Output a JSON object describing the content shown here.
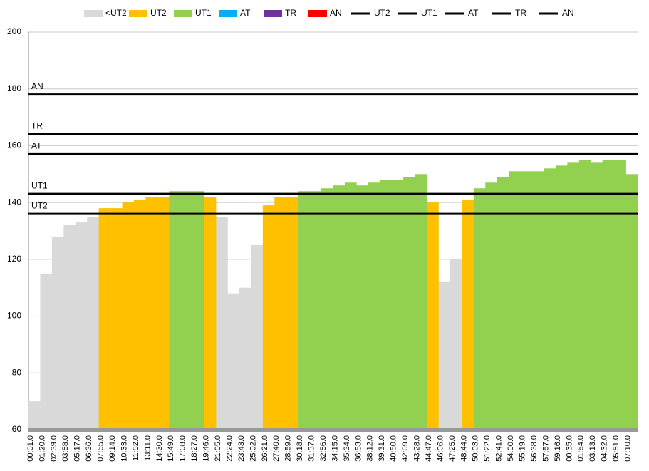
{
  "chart_data": {
    "type": "bar",
    "categories": [
      "00:01.0",
      "01:20.0",
      "02:39.0",
      "03:58.0",
      "05:17.0",
      "06:36.0",
      "07:55.0",
      "09:14.0",
      "10:33.0",
      "11:52.0",
      "13:11.0",
      "14:30.0",
      "15:49.0",
      "17:08.0",
      "18:27.0",
      "19:46.0",
      "21:05.0",
      "22:24.0",
      "23:43.0",
      "25:02.0",
      "26:21.0",
      "27:40.0",
      "28:59.0",
      "30:18.0",
      "31:37.0",
      "32:56.0",
      "34:15.0",
      "35:34.0",
      "36:53.0",
      "38:12.0",
      "39:31.0",
      "40:50.0",
      "42:09.0",
      "43:28.0",
      "44:47.0",
      "46:06.0",
      "47:25.0",
      "48:44.0",
      "50:03.0",
      "51:22.0",
      "52:41.0",
      "54:00.0",
      "55:19.0",
      "56:38.0",
      "57:57.0",
      "59:16.0",
      "00:35.0",
      "01:54.0",
      "03:13.0",
      "04:32.0",
      "05:51.0",
      "07:10.0"
    ],
    "series": [
      {
        "name": "<UT2",
        "color": "#d9d9d9",
        "values": [
          70,
          115,
          128,
          132,
          133,
          135,
          null,
          null,
          null,
          null,
          null,
          null,
          null,
          null,
          null,
          null,
          135,
          108,
          110,
          125,
          null,
          null,
          null,
          null,
          null,
          null,
          null,
          null,
          null,
          null,
          null,
          null,
          null,
          null,
          null,
          112,
          120,
          null,
          null,
          null,
          null,
          null,
          null,
          null,
          null,
          null,
          null,
          null,
          null,
          null,
          null,
          null
        ]
      },
      {
        "name": "UT2",
        "color": "#ffc000",
        "values": [
          null,
          null,
          null,
          null,
          null,
          null,
          138,
          138,
          140,
          141,
          142,
          142,
          null,
          null,
          null,
          142,
          null,
          null,
          null,
          null,
          139,
          142,
          142,
          null,
          null,
          null,
          null,
          null,
          null,
          null,
          null,
          null,
          null,
          null,
          140,
          null,
          null,
          141,
          null,
          null,
          null,
          null,
          null,
          null,
          null,
          null,
          null,
          null,
          null,
          null,
          null,
          null
        ]
      },
      {
        "name": "UT1",
        "color": "#92d050",
        "values": [
          null,
          null,
          null,
          null,
          null,
          null,
          null,
          null,
          null,
          null,
          null,
          null,
          144,
          144,
          144,
          null,
          null,
          null,
          null,
          null,
          null,
          null,
          null,
          144,
          144,
          145,
          146,
          147,
          146,
          147,
          148,
          148,
          149,
          150,
          null,
          null,
          null,
          null,
          145,
          147,
          149,
          151,
          151,
          151,
          152,
          153,
          154,
          155,
          154,
          155,
          155,
          150
        ]
      },
      {
        "name": "AT",
        "color": "#00b0f0",
        "values": [
          null,
          null,
          null,
          null,
          null,
          null,
          null,
          null,
          null,
          null,
          null,
          null,
          null,
          null,
          null,
          null,
          null,
          null,
          null,
          null,
          null,
          null,
          null,
          null,
          null,
          null,
          null,
          null,
          null,
          null,
          null,
          null,
          null,
          null,
          null,
          null,
          null,
          null,
          null,
          null,
          null,
          null,
          null,
          null,
          null,
          null,
          null,
          null,
          null,
          null,
          null,
          null
        ]
      },
      {
        "name": "TR",
        "color": "#7030a0",
        "values": [
          null,
          null,
          null,
          null,
          null,
          null,
          null,
          null,
          null,
          null,
          null,
          null,
          null,
          null,
          null,
          null,
          null,
          null,
          null,
          null,
          null,
          null,
          null,
          null,
          null,
          null,
          null,
          null,
          null,
          null,
          null,
          null,
          null,
          null,
          null,
          null,
          null,
          null,
          null,
          null,
          null,
          null,
          null,
          null,
          null,
          null,
          null,
          null,
          null,
          null,
          null,
          null
        ]
      },
      {
        "name": "AN",
        "color": "#ff0000",
        "values": [
          null,
          null,
          null,
          null,
          null,
          null,
          null,
          null,
          null,
          null,
          null,
          null,
          null,
          null,
          null,
          null,
          null,
          null,
          null,
          null,
          null,
          null,
          null,
          null,
          null,
          null,
          null,
          null,
          null,
          null,
          null,
          null,
          null,
          null,
          null,
          null,
          null,
          null,
          null,
          null,
          null,
          null,
          null,
          null,
          null,
          null,
          null,
          null,
          null,
          null,
          null,
          null
        ]
      }
    ],
    "lines": [
      {
        "name": "UT2",
        "color": "#000000",
        "value": 136
      },
      {
        "name": "UT1",
        "color": "#000000",
        "value": 143
      },
      {
        "name": "AT",
        "color": "#000000",
        "value": 157
      },
      {
        "name": "TR",
        "color": "#000000",
        "value": 164
      },
      {
        "name": "AN",
        "color": "#000000",
        "value": 178
      }
    ],
    "ylim": [
      60,
      200
    ],
    "yticks": [
      60,
      80,
      100,
      120,
      140,
      160,
      180,
      200
    ],
    "grid": true
  }
}
